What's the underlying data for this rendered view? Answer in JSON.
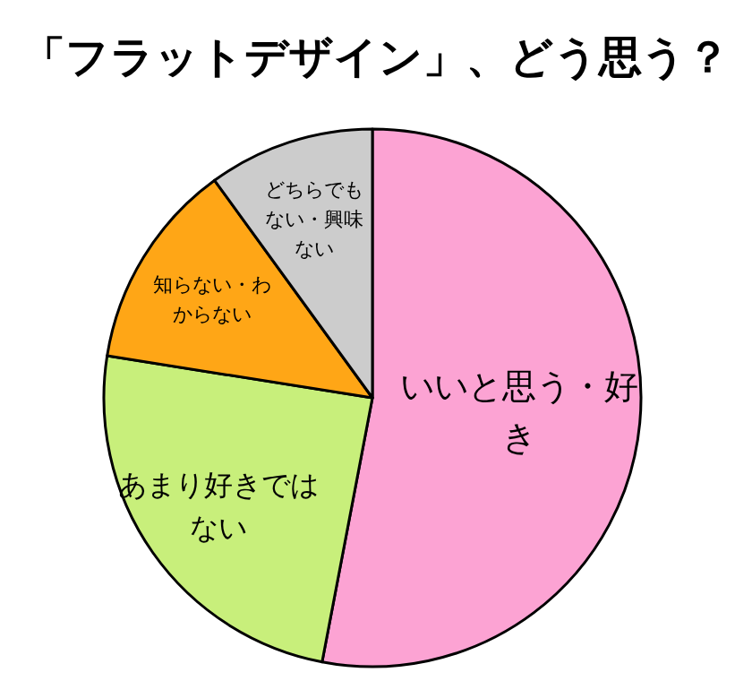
{
  "chart_data": {
    "type": "pie",
    "title": "「フラットデザイン」、どう思う？",
    "categories": [
      "いいと思う・好き",
      "あまり好きではない",
      "知らない・わからない",
      "どちらでもない・興味ない"
    ],
    "values": [
      53,
      24.5,
      12.5,
      10
    ],
    "colors": [
      "#fca3d3",
      "#c8ef7b",
      "#ffa616",
      "#cccccc"
    ]
  }
}
